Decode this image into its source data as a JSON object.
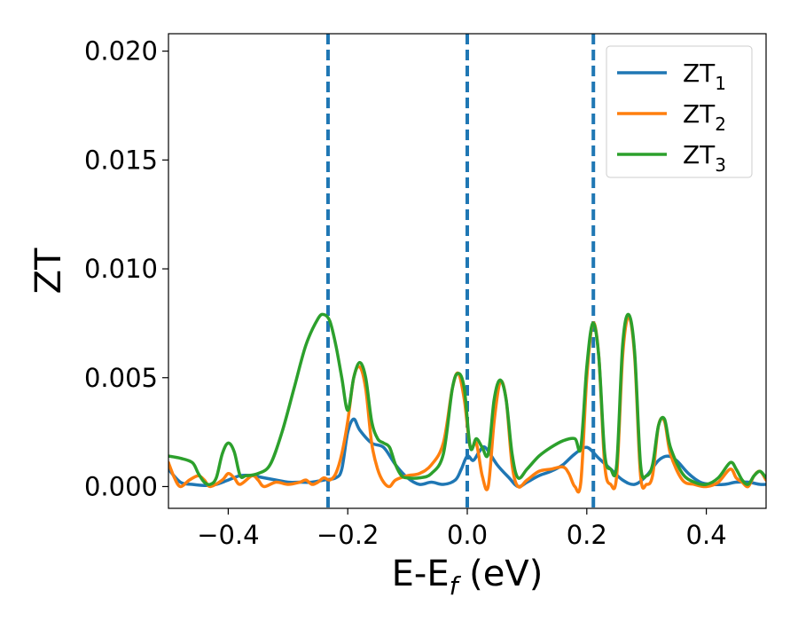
{
  "chart_data": {
    "type": "line",
    "xlabel": "E-E",
    "xlabel_sub": "f",
    "xlabel_unit": " (eV)",
    "ylabel": "ZT",
    "xlim": [
      -0.5,
      0.5
    ],
    "ylim": [
      -0.001,
      0.0208
    ],
    "xticks": [
      -0.4,
      -0.2,
      0.0,
      0.2,
      0.4
    ],
    "xtick_labels": [
      "−0.4",
      "−0.2",
      "0.0",
      "0.2",
      "0.4"
    ],
    "yticks": [
      0.0,
      0.005,
      0.01,
      0.015,
      0.02
    ],
    "ytick_labels": [
      "0.000",
      "0.005",
      "0.010",
      "0.015",
      "0.020"
    ],
    "grid": false,
    "legend_position": "top-right",
    "vlines": [
      {
        "x": -0.233,
        "color": "#1f77b4",
        "style": "dashed"
      },
      {
        "x": 0.0,
        "color": "#000000",
        "style": "dashed"
      },
      {
        "x": 0.0,
        "color": "#1f77b4",
        "style": "dashed"
      },
      {
        "x": 0.211,
        "color": "#1f77b4",
        "style": "dashed"
      }
    ],
    "series": [
      {
        "name": "ZT",
        "name_sub": "1",
        "color": "#1f77b4",
        "points": [
          [
            -0.5,
            0.0008
          ],
          [
            -0.48,
            0.0002
          ],
          [
            -0.46,
            0.0001
          ],
          [
            -0.44,
            5e-05
          ],
          [
            -0.42,
            0.0001
          ],
          [
            -0.4,
            0.0003
          ],
          [
            -0.38,
            0.0005
          ],
          [
            -0.36,
            0.0005
          ],
          [
            -0.34,
            0.0004
          ],
          [
            -0.32,
            0.0003
          ],
          [
            -0.3,
            0.0002
          ],
          [
            -0.28,
            0.0002
          ],
          [
            -0.26,
            0.0002
          ],
          [
            -0.24,
            0.0003
          ],
          [
            -0.22,
            0.0004
          ],
          [
            -0.21,
            0.0008
          ],
          [
            -0.2,
            0.0025
          ],
          [
            -0.19,
            0.0031
          ],
          [
            -0.18,
            0.0026
          ],
          [
            -0.16,
            0.002
          ],
          [
            -0.14,
            0.0018
          ],
          [
            -0.12,
            0.001
          ],
          [
            -0.1,
            0.0004
          ],
          [
            -0.08,
            0.0001
          ],
          [
            -0.06,
            0.0002
          ],
          [
            -0.04,
            0.0001
          ],
          [
            -0.02,
            0.0003
          ],
          [
            -0.01,
            0.0008
          ],
          [
            0.0,
            0.0014
          ],
          [
            0.01,
            0.0012
          ],
          [
            0.02,
            0.0016
          ],
          [
            0.03,
            0.0018
          ],
          [
            0.05,
            0.001
          ],
          [
            0.07,
            0.0004
          ],
          [
            0.085,
            0.0
          ],
          [
            0.1,
            0.0002
          ],
          [
            0.12,
            0.0005
          ],
          [
            0.14,
            0.0007
          ],
          [
            0.16,
            0.001
          ],
          [
            0.18,
            0.0015
          ],
          [
            0.2,
            0.0018
          ],
          [
            0.22,
            0.0013
          ],
          [
            0.24,
            0.0008
          ],
          [
            0.26,
            0.0003
          ],
          [
            0.28,
            0.0001
          ],
          [
            0.3,
            0.0005
          ],
          [
            0.32,
            0.0012
          ],
          [
            0.335,
            0.0014
          ],
          [
            0.35,
            0.0012
          ],
          [
            0.37,
            0.0006
          ],
          [
            0.39,
            0.0002
          ],
          [
            0.41,
            0.0001
          ],
          [
            0.43,
            0.0001
          ],
          [
            0.45,
            0.0002
          ],
          [
            0.47,
            0.0002
          ],
          [
            0.49,
            0.0001
          ],
          [
            0.5,
            0.0001
          ]
        ]
      },
      {
        "name": "ZT",
        "name_sub": "2",
        "color": "#ff7f0e",
        "points": [
          [
            -0.5,
            0.0011
          ],
          [
            -0.49,
            0.0004
          ],
          [
            -0.48,
            0.0
          ],
          [
            -0.465,
            0.0003
          ],
          [
            -0.45,
            0.0005
          ],
          [
            -0.44,
            0.0003
          ],
          [
            -0.43,
            0.0
          ],
          [
            -0.41,
            0.0003
          ],
          [
            -0.4,
            0.0006
          ],
          [
            -0.39,
            0.0004
          ],
          [
            -0.38,
            0.0001
          ],
          [
            -0.36,
            0.0005
          ],
          [
            -0.35,
            0.0003
          ],
          [
            -0.34,
            0.0
          ],
          [
            -0.32,
            0.0002
          ],
          [
            -0.3,
            0.0001
          ],
          [
            -0.28,
            0.0002
          ],
          [
            -0.27,
            0.0003
          ],
          [
            -0.26,
            0.0001
          ],
          [
            -0.25,
            0.0002
          ],
          [
            -0.24,
            0.0004
          ],
          [
            -0.23,
            0.0003
          ],
          [
            -0.22,
            0.0006
          ],
          [
            -0.21,
            0.0015
          ],
          [
            -0.2,
            0.003
          ],
          [
            -0.19,
            0.005
          ],
          [
            -0.18,
            0.0055
          ],
          [
            -0.17,
            0.0045
          ],
          [
            -0.16,
            0.002
          ],
          [
            -0.15,
            0.0008
          ],
          [
            -0.14,
            0.0002
          ],
          [
            -0.13,
            0.0
          ],
          [
            -0.12,
            0.0003
          ],
          [
            -0.1,
            0.0005
          ],
          [
            -0.08,
            0.0006
          ],
          [
            -0.06,
            0.001
          ],
          [
            -0.04,
            0.002
          ],
          [
            -0.025,
            0.0045
          ],
          [
            -0.015,
            0.0052
          ],
          [
            -0.005,
            0.004
          ],
          [
            0.005,
            0.0018
          ],
          [
            0.015,
            0.002
          ],
          [
            0.025,
            0.0005
          ],
          [
            0.035,
            0.0
          ],
          [
            0.045,
            0.003
          ],
          [
            0.055,
            0.0048
          ],
          [
            0.065,
            0.004
          ],
          [
            0.075,
            0.001
          ],
          [
            0.085,
            0.0
          ],
          [
            0.1,
            0.0003
          ],
          [
            0.12,
            0.0007
          ],
          [
            0.14,
            0.0008
          ],
          [
            0.16,
            0.0009
          ],
          [
            0.17,
            0.0006
          ],
          [
            0.18,
            0.0
          ],
          [
            0.19,
            0.0002
          ],
          [
            0.2,
            0.005
          ],
          [
            0.21,
            0.0075
          ],
          [
            0.22,
            0.006
          ],
          [
            0.23,
            0.001
          ],
          [
            0.24,
            0.0001
          ],
          [
            0.25,
            0.0005
          ],
          [
            0.26,
            0.006
          ],
          [
            0.27,
            0.0078
          ],
          [
            0.28,
            0.006
          ],
          [
            0.29,
            0.0005
          ],
          [
            0.3,
            0.0001
          ],
          [
            0.31,
            0.0005
          ],
          [
            0.32,
            0.0028
          ],
          [
            0.33,
            0.003
          ],
          [
            0.34,
            0.0015
          ],
          [
            0.36,
            0.0003
          ],
          [
            0.38,
            0.0001
          ],
          [
            0.4,
            0.0
          ],
          [
            0.42,
            0.0002
          ],
          [
            0.44,
            0.0008
          ],
          [
            0.45,
            0.0004
          ],
          [
            0.46,
            0.0002
          ],
          [
            0.47,
            0.0
          ],
          [
            0.48,
            0.0005
          ],
          [
            0.49,
            0.0007
          ],
          [
            0.5,
            0.0003
          ]
        ]
      },
      {
        "name": "ZT",
        "name_sub": "3",
        "color": "#2ca02c",
        "points": [
          [
            -0.5,
            0.0014
          ],
          [
            -0.48,
            0.0013
          ],
          [
            -0.46,
            0.0011
          ],
          [
            -0.45,
            0.0006
          ],
          [
            -0.44,
            0.0002
          ],
          [
            -0.43,
            0.0001
          ],
          [
            -0.42,
            0.0004
          ],
          [
            -0.41,
            0.0015
          ],
          [
            -0.4,
            0.002
          ],
          [
            -0.39,
            0.0016
          ],
          [
            -0.38,
            0.0005
          ],
          [
            -0.37,
            0.0005
          ],
          [
            -0.35,
            0.0006
          ],
          [
            -0.33,
            0.001
          ],
          [
            -0.31,
            0.0025
          ],
          [
            -0.29,
            0.0045
          ],
          [
            -0.27,
            0.0065
          ],
          [
            -0.25,
            0.0077
          ],
          [
            -0.24,
            0.0079
          ],
          [
            -0.23,
            0.0076
          ],
          [
            -0.22,
            0.0065
          ],
          [
            -0.21,
            0.005
          ],
          [
            -0.2,
            0.0035
          ],
          [
            -0.19,
            0.005
          ],
          [
            -0.18,
            0.0057
          ],
          [
            -0.17,
            0.005
          ],
          [
            -0.16,
            0.003
          ],
          [
            -0.15,
            0.0022
          ],
          [
            -0.14,
            0.002
          ],
          [
            -0.13,
            0.0018
          ],
          [
            -0.12,
            0.001
          ],
          [
            -0.11,
            0.0005
          ],
          [
            -0.1,
            0.0004
          ],
          [
            -0.08,
            0.0004
          ],
          [
            -0.06,
            0.0006
          ],
          [
            -0.04,
            0.0015
          ],
          [
            -0.025,
            0.0045
          ],
          [
            -0.015,
            0.0052
          ],
          [
            -0.005,
            0.0045
          ],
          [
            0.005,
            0.0018
          ],
          [
            0.015,
            0.0022
          ],
          [
            0.025,
            0.0018
          ],
          [
            0.035,
            0.0015
          ],
          [
            0.045,
            0.004
          ],
          [
            0.055,
            0.0049
          ],
          [
            0.065,
            0.004
          ],
          [
            0.075,
            0.0015
          ],
          [
            0.085,
            0.0004
          ],
          [
            0.1,
            0.0008
          ],
          [
            0.12,
            0.0014
          ],
          [
            0.14,
            0.0018
          ],
          [
            0.16,
            0.0021
          ],
          [
            0.18,
            0.0022
          ],
          [
            0.19,
            0.0018
          ],
          [
            0.2,
            0.0055
          ],
          [
            0.21,
            0.0075
          ],
          [
            0.22,
            0.006
          ],
          [
            0.23,
            0.0015
          ],
          [
            0.24,
            0.0008
          ],
          [
            0.25,
            0.001
          ],
          [
            0.26,
            0.0065
          ],
          [
            0.27,
            0.0079
          ],
          [
            0.28,
            0.0062
          ],
          [
            0.29,
            0.001
          ],
          [
            0.3,
            0.0005
          ],
          [
            0.31,
            0.001
          ],
          [
            0.32,
            0.0028
          ],
          [
            0.33,
            0.0031
          ],
          [
            0.34,
            0.0018
          ],
          [
            0.36,
            0.0006
          ],
          [
            0.38,
            0.0002
          ],
          [
            0.4,
            0.0001
          ],
          [
            0.42,
            0.0004
          ],
          [
            0.44,
            0.0011
          ],
          [
            0.45,
            0.0008
          ],
          [
            0.46,
            0.0003
          ],
          [
            0.47,
            0.0001
          ],
          [
            0.48,
            0.0005
          ],
          [
            0.49,
            0.0007
          ],
          [
            0.5,
            0.0004
          ]
        ]
      }
    ]
  }
}
